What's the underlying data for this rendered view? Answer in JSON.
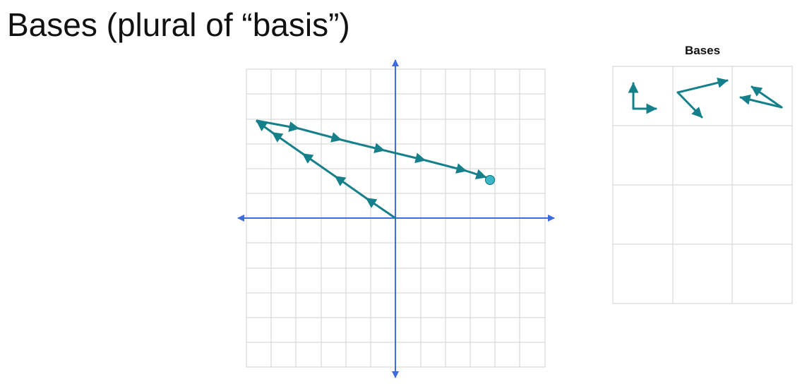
{
  "title": "Bases (plural of “basis”)",
  "panel": {
    "title": "Bases"
  },
  "colors": {
    "vector": "#16808a",
    "axis": "#3f6be0",
    "grid": "#d2d2d2",
    "point": "#3ab7c7"
  }
}
